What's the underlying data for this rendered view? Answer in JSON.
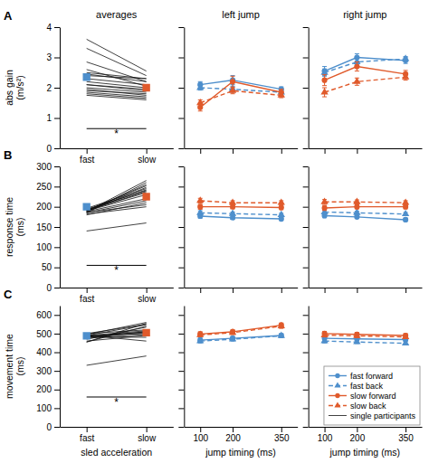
{
  "chart_data": [
    {
      "type": "slope",
      "title": "averages",
      "ylabel": "abs gain\n(m/s²)",
      "categories": [
        "fast",
        "slow"
      ],
      "values": [
        2.35,
        2.0
      ],
      "colors": [
        "#4e8fcc",
        "#e05a2b"
      ],
      "marker": "square",
      "series": [
        {
          "type": "line",
          "color": "#111111",
          "values": [
            [
              2.5,
              2.3
            ],
            [
              2.3,
              2.1
            ],
            [
              2.2,
              2.0
            ],
            [
              2.1,
              1.9
            ],
            [
              2.0,
              1.85
            ],
            [
              1.95,
              1.75
            ],
            [
              1.85,
              1.7
            ],
            [
              1.8,
              1.65
            ],
            [
              1.9,
              1.8
            ],
            [
              2.4,
              2.3
            ],
            [
              2.45,
              2.2
            ],
            [
              2.1,
              1.95
            ],
            [
              2.6,
              2.05
            ],
            [
              3.6,
              2.55
            ],
            [
              3.3,
              2.4
            ],
            [
              2.85,
              2.2
            ],
            [
              1.75,
              1.6
            ]
          ]
        }
      ],
      "ylim": [
        0,
        4
      ],
      "yticks": [
        0,
        1,
        2,
        3,
        4
      ],
      "annotations": [
        {
          "text": "A"
        },
        {
          "text": "*",
          "y": 0.65
        }
      ]
    },
    {
      "type": "line",
      "title": "left jump",
      "x": [
        100,
        200,
        350
      ],
      "xlim": [
        50,
        400
      ],
      "xticks": [
        100,
        200,
        350
      ],
      "ylim": [
        0,
        4
      ],
      "yticks": [
        0,
        1,
        2,
        3,
        4
      ],
      "tick_labels": false,
      "series": [
        {
          "color": "#4e8fcc",
          "line_style": "solid",
          "marker": "circle",
          "values": [
            2.1,
            2.25,
            1.95
          ],
          "errors": [
            0.1,
            0.15,
            0.08
          ]
        },
        {
          "color": "#4e8fcc",
          "line_style": "dashed",
          "marker": "triangle",
          "values": [
            2.0,
            1.95,
            1.85
          ],
          "errors": [
            0.08,
            0.1,
            0.08
          ]
        },
        {
          "color": "#e05a2b",
          "line_style": "solid",
          "marker": "circle",
          "values": [
            1.35,
            2.2,
            1.85
          ],
          "errors": [
            0.12,
            0.18,
            0.1
          ]
        },
        {
          "color": "#e05a2b",
          "line_style": "dashed",
          "marker": "triangle",
          "values": [
            1.5,
            1.9,
            1.75
          ],
          "errors": [
            0.1,
            0.1,
            0.08
          ]
        }
      ]
    },
    {
      "type": "line",
      "title": "right jump",
      "x": [
        100,
        200,
        350
      ],
      "xlim": [
        50,
        400
      ],
      "xticks": [
        100,
        200,
        350
      ],
      "ylim": [
        0,
        4
      ],
      "yticks": [
        0,
        1,
        2,
        3,
        4
      ],
      "tick_labels": false,
      "series": [
        {
          "color": "#4e8fcc",
          "line_style": "solid",
          "marker": "circle",
          "values": [
            2.55,
            3.0,
            2.9
          ],
          "errors": [
            0.15,
            0.12,
            0.1
          ]
        },
        {
          "color": "#4e8fcc",
          "line_style": "dashed",
          "marker": "triangle",
          "values": [
            2.5,
            2.85,
            2.95
          ],
          "errors": [
            0.12,
            0.1,
            0.08
          ]
        },
        {
          "color": "#e05a2b",
          "line_style": "solid",
          "marker": "circle",
          "values": [
            2.25,
            2.7,
            2.45
          ],
          "errors": [
            0.18,
            0.15,
            0.12
          ]
        },
        {
          "color": "#e05a2b",
          "line_style": "dashed",
          "marker": "triangle",
          "values": [
            1.85,
            2.2,
            2.35
          ],
          "errors": [
            0.15,
            0.12,
            0.1
          ]
        }
      ]
    },
    {
      "type": "slope",
      "ylabel": "response time\n(ms)",
      "categories": [
        "fast",
        "slow"
      ],
      "values": [
        200,
        225
      ],
      "colors": [
        "#4e8fcc",
        "#e05a2b"
      ],
      "marker": "square",
      "series": [
        {
          "type": "line",
          "color": "#111111",
          "values": [
            [
              190,
              230
            ],
            [
              192,
              235
            ],
            [
              194,
              240
            ],
            [
              196,
              245
            ],
            [
              180,
              210
            ],
            [
              185,
              215
            ],
            [
              188,
              220
            ],
            [
              182,
              200
            ],
            [
              186,
              205
            ],
            [
              190,
              238
            ],
            [
              192,
              242
            ],
            [
              188,
              248
            ],
            [
              191,
              252
            ],
            [
              189,
              255
            ],
            [
              185,
              260
            ],
            [
              188,
              265
            ],
            [
              140,
              160
            ]
          ]
        }
      ],
      "ylim": [
        0,
        300
      ],
      "yticks": [
        0,
        50,
        100,
        150,
        200,
        250,
        300
      ],
      "annotations": [
        {
          "text": "B"
        },
        {
          "text": "*",
          "y": 55
        }
      ]
    },
    {
      "type": "line",
      "x": [
        100,
        200,
        350
      ],
      "xlim": [
        50,
        400
      ],
      "xticks": [
        100,
        200,
        350
      ],
      "ylim": [
        0,
        300
      ],
      "yticks": [
        0,
        50,
        100,
        150,
        200,
        250,
        300
      ],
      "tick_labels": false,
      "series": [
        {
          "color": "#4e8fcc",
          "line_style": "solid",
          "marker": "circle",
          "values": [
            177,
            173,
            170
          ],
          "errors": [
            5,
            4,
            4
          ]
        },
        {
          "color": "#4e8fcc",
          "line_style": "dashed",
          "marker": "triangle",
          "values": [
            185,
            183,
            180
          ],
          "errors": [
            5,
            4,
            4
          ]
        },
        {
          "color": "#e05a2b",
          "line_style": "solid",
          "marker": "circle",
          "values": [
            200,
            200,
            198
          ],
          "errors": [
            6,
            5,
            5
          ]
        },
        {
          "color": "#e05a2b",
          "line_style": "dashed",
          "marker": "triangle",
          "values": [
            215,
            210,
            210
          ],
          "errors": [
            6,
            5,
            5
          ]
        }
      ]
    },
    {
      "type": "line",
      "x": [
        100,
        200,
        350
      ],
      "xlim": [
        50,
        400
      ],
      "xticks": [
        100,
        200,
        350
      ],
      "ylim": [
        0,
        300
      ],
      "yticks": [
        0,
        50,
        100,
        150,
        200,
        250,
        300
      ],
      "tick_labels": false,
      "series": [
        {
          "color": "#4e8fcc",
          "line_style": "solid",
          "marker": "circle",
          "values": [
            178,
            175,
            168
          ],
          "errors": [
            5,
            4,
            4
          ]
        },
        {
          "color": "#4e8fcc",
          "line_style": "dashed",
          "marker": "triangle",
          "values": [
            187,
            185,
            182
          ],
          "errors": [
            5,
            4,
            4
          ]
        },
        {
          "color": "#e05a2b",
          "line_style": "solid",
          "marker": "circle",
          "values": [
            197,
            200,
            200
          ],
          "errors": [
            6,
            5,
            5
          ]
        },
        {
          "color": "#e05a2b",
          "line_style": "dashed",
          "marker": "triangle",
          "values": [
            212,
            212,
            210
          ],
          "errors": [
            6,
            5,
            5
          ]
        }
      ]
    },
    {
      "type": "slope",
      "ylabel": "movement time\n(ms)",
      "xlabel": "sled acceleration",
      "categories": [
        "fast",
        "slow"
      ],
      "values": [
        488,
        505
      ],
      "colors": [
        "#4e8fcc",
        "#e05a2b"
      ],
      "marker": "square",
      "series": [
        {
          "name": "single participants",
          "type": "line",
          "color": "#111111",
          "values": [
            [
              480,
              510
            ],
            [
              490,
              515
            ],
            [
              455,
              540
            ],
            [
              475,
              495
            ],
            [
              490,
              500
            ],
            [
              500,
              550
            ],
            [
              485,
              480
            ],
            [
              495,
              560
            ],
            [
              480,
              505
            ],
            [
              485,
              510
            ],
            [
              470,
              535
            ],
            [
              490,
              548
            ],
            [
              460,
              490
            ],
            [
              500,
              520
            ],
            [
              455,
              555
            ],
            [
              490,
              460
            ],
            [
              330,
              380
            ]
          ]
        }
      ],
      "ylim": [
        0,
        650
      ],
      "yticks": [
        0,
        100,
        200,
        300,
        400,
        500,
        600
      ],
      "annotations": [
        {
          "text": "C"
        },
        {
          "text": "*",
          "y": 160
        }
      ]
    },
    {
      "type": "line",
      "xlabel": "jump timing (ms)",
      "x": [
        100,
        200,
        350
      ],
      "xlim": [
        50,
        400
      ],
      "xticks": [
        100,
        200,
        350
      ],
      "ylim": [
        0,
        650
      ],
      "yticks": [
        0,
        100,
        200,
        300,
        400,
        500,
        600
      ],
      "tick_labels": "x",
      "series": [
        {
          "color": "#4e8fcc",
          "line_style": "solid",
          "marker": "circle",
          "values": [
            465,
            475,
            490
          ],
          "errors": [
            12,
            10,
            10
          ]
        },
        {
          "color": "#4e8fcc",
          "line_style": "dashed",
          "marker": "triangle",
          "values": [
            460,
            470,
            488
          ],
          "errors": [
            10,
            10,
            10
          ]
        },
        {
          "color": "#e05a2b",
          "line_style": "solid",
          "marker": "circle",
          "values": [
            498,
            510,
            545
          ],
          "errors": [
            12,
            10,
            12
          ]
        },
        {
          "color": "#e05a2b",
          "line_style": "dashed",
          "marker": "triangle",
          "values": [
            493,
            505,
            540
          ],
          "errors": [
            10,
            10,
            12
          ]
        }
      ]
    },
    {
      "type": "line",
      "xlabel": "jump timing (ms)",
      "x": [
        100,
        200,
        350
      ],
      "xlim": [
        50,
        400
      ],
      "xticks": [
        100,
        200,
        350
      ],
      "ylim": [
        0,
        650
      ],
      "yticks": [
        0,
        100,
        200,
        300,
        400,
        500,
        600
      ],
      "tick_labels": "x",
      "legend": "lower right",
      "series": [
        {
          "name": "fast forward",
          "color": "#4e8fcc",
          "line_style": "solid",
          "marker": "circle",
          "values": [
            475,
            472,
            468
          ],
          "errors": [
            10,
            10,
            8
          ]
        },
        {
          "name": "fast back",
          "color": "#4e8fcc",
          "line_style": "dashed",
          "marker": "triangle",
          "values": [
            460,
            455,
            448
          ],
          "errors": [
            10,
            8,
            8
          ]
        },
        {
          "name": "slow forward",
          "color": "#e05a2b",
          "line_style": "solid",
          "marker": "circle",
          "values": [
            500,
            496,
            490
          ],
          "errors": [
            12,
            10,
            10
          ]
        },
        {
          "name": "slow back",
          "color": "#e05a2b",
          "line_style": "dashed",
          "marker": "triangle",
          "values": [
            492,
            488,
            482
          ],
          "errors": [
            10,
            10,
            8
          ]
        }
      ]
    }
  ]
}
